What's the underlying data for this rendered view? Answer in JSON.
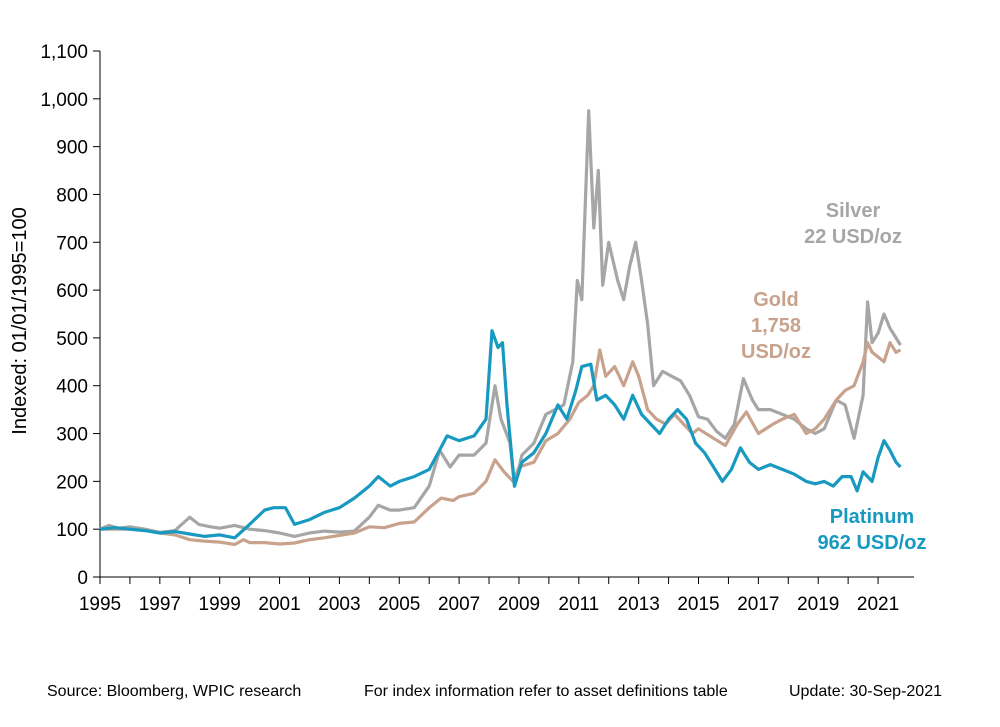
{
  "chart_data": {
    "type": "line",
    "ylabel": "Indexed: 01/01/1995=100",
    "xlabel": "",
    "xlim": [
      1995,
      2021.8
    ],
    "ylim": [
      0,
      1100
    ],
    "yticks": [
      0,
      100,
      200,
      300,
      400,
      500,
      600,
      700,
      800,
      900,
      1000,
      1100
    ],
    "ytick_labels": [
      "0",
      "100",
      "200",
      "300",
      "400",
      "500",
      "600",
      "700",
      "800",
      "900",
      "1,000",
      "1,100"
    ],
    "xticks": [
      1995,
      1997,
      1999,
      2001,
      2003,
      2005,
      2007,
      2009,
      2011,
      2013,
      2015,
      2017,
      2019,
      2021
    ],
    "xtick_labels": [
      "1995",
      "1997",
      "1999",
      "2001",
      "2003",
      "2005",
      "2007",
      "2009",
      "2011",
      "2013",
      "2015",
      "2017",
      "2019",
      "2021"
    ],
    "grid": false,
    "series": [
      {
        "name": "Silver",
        "color": "#a6a6a6",
        "label_lines": [
          "Silver",
          "22 USD/oz"
        ],
        "points": [
          [
            1995,
            100
          ],
          [
            1995.3,
            108
          ],
          [
            1995.6,
            102
          ],
          [
            1996,
            105
          ],
          [
            1996.5,
            100
          ],
          [
            1997,
            93
          ],
          [
            1997.5,
            97
          ],
          [
            1998,
            125
          ],
          [
            1998.3,
            110
          ],
          [
            1998.7,
            105
          ],
          [
            1999,
            102
          ],
          [
            1999.5,
            108
          ],
          [
            2000,
            100
          ],
          [
            2000.5,
            97
          ],
          [
            2001,
            92
          ],
          [
            2001.5,
            85
          ],
          [
            2002,
            92
          ],
          [
            2002.5,
            96
          ],
          [
            2003,
            94
          ],
          [
            2003.5,
            96
          ],
          [
            2004,
            125
          ],
          [
            2004.3,
            150
          ],
          [
            2004.7,
            140
          ],
          [
            2005,
            140
          ],
          [
            2005.5,
            145
          ],
          [
            2006,
            190
          ],
          [
            2006.35,
            265
          ],
          [
            2006.7,
            230
          ],
          [
            2007,
            255
          ],
          [
            2007.5,
            255
          ],
          [
            2007.9,
            280
          ],
          [
            2008.2,
            400
          ],
          [
            2008.4,
            330
          ],
          [
            2008.7,
            280
          ],
          [
            2008.85,
            190
          ],
          [
            2009.1,
            255
          ],
          [
            2009.5,
            280
          ],
          [
            2009.9,
            340
          ],
          [
            2010.2,
            350
          ],
          [
            2010.5,
            360
          ],
          [
            2010.8,
            450
          ],
          [
            2010.95,
            620
          ],
          [
            2011.1,
            580
          ],
          [
            2011.33,
            975
          ],
          [
            2011.5,
            730
          ],
          [
            2011.65,
            850
          ],
          [
            2011.8,
            610
          ],
          [
            2012,
            700
          ],
          [
            2012.3,
            620
          ],
          [
            2012.5,
            580
          ],
          [
            2012.7,
            650
          ],
          [
            2012.9,
            700
          ],
          [
            2013.1,
            620
          ],
          [
            2013.3,
            530
          ],
          [
            2013.5,
            400
          ],
          [
            2013.8,
            430
          ],
          [
            2014.1,
            420
          ],
          [
            2014.4,
            410
          ],
          [
            2014.7,
            380
          ],
          [
            2015,
            335
          ],
          [
            2015.3,
            330
          ],
          [
            2015.6,
            305
          ],
          [
            2015.9,
            290
          ],
          [
            2016.2,
            320
          ],
          [
            2016.5,
            415
          ],
          [
            2016.8,
            370
          ],
          [
            2017,
            350
          ],
          [
            2017.4,
            350
          ],
          [
            2017.8,
            340
          ],
          [
            2018.2,
            330
          ],
          [
            2018.6,
            310
          ],
          [
            2018.9,
            300
          ],
          [
            2019.2,
            310
          ],
          [
            2019.6,
            370
          ],
          [
            2019.9,
            360
          ],
          [
            2020.2,
            290
          ],
          [
            2020.5,
            380
          ],
          [
            2020.65,
            575
          ],
          [
            2020.8,
            490
          ],
          [
            2021,
            510
          ],
          [
            2021.2,
            550
          ],
          [
            2021.4,
            520
          ],
          [
            2021.6,
            500
          ],
          [
            2021.75,
            485
          ]
        ]
      },
      {
        "name": "Gold",
        "color": "#c8a28c",
        "label_lines": [
          "Gold",
          "1,758",
          "USD/oz"
        ],
        "points": [
          [
            1995,
            100
          ],
          [
            1995.5,
            100
          ],
          [
            1996,
            100
          ],
          [
            1996.5,
            98
          ],
          [
            1997,
            92
          ],
          [
            1997.5,
            88
          ],
          [
            1998,
            78
          ],
          [
            1998.5,
            75
          ],
          [
            1999,
            73
          ],
          [
            1999.5,
            68
          ],
          [
            1999.8,
            78
          ],
          [
            2000,
            72
          ],
          [
            2000.5,
            72
          ],
          [
            2001,
            69
          ],
          [
            2001.5,
            71
          ],
          [
            2002,
            78
          ],
          [
            2002.5,
            82
          ],
          [
            2003,
            87
          ],
          [
            2003.5,
            92
          ],
          [
            2004,
            105
          ],
          [
            2004.5,
            103
          ],
          [
            2005,
            112
          ],
          [
            2005.5,
            115
          ],
          [
            2006,
            145
          ],
          [
            2006.4,
            165
          ],
          [
            2006.8,
            160
          ],
          [
            2007,
            168
          ],
          [
            2007.5,
            175
          ],
          [
            2007.9,
            200
          ],
          [
            2008.2,
            245
          ],
          [
            2008.5,
            220
          ],
          [
            2008.8,
            200
          ],
          [
            2009,
            230
          ],
          [
            2009.5,
            240
          ],
          [
            2009.9,
            285
          ],
          [
            2010.3,
            300
          ],
          [
            2010.7,
            330
          ],
          [
            2011,
            365
          ],
          [
            2011.3,
            380
          ],
          [
            2011.5,
            400
          ],
          [
            2011.7,
            475
          ],
          [
            2011.9,
            420
          ],
          [
            2012.2,
            440
          ],
          [
            2012.5,
            400
          ],
          [
            2012.8,
            450
          ],
          [
            2013,
            420
          ],
          [
            2013.3,
            350
          ],
          [
            2013.6,
            330
          ],
          [
            2013.9,
            320
          ],
          [
            2014.2,
            340
          ],
          [
            2014.5,
            320
          ],
          [
            2014.8,
            300
          ],
          [
            2015,
            310
          ],
          [
            2015.5,
            290
          ],
          [
            2015.9,
            275
          ],
          [
            2016.3,
            320
          ],
          [
            2016.6,
            345
          ],
          [
            2017,
            300
          ],
          [
            2017.5,
            320
          ],
          [
            2017.8,
            330
          ],
          [
            2018.2,
            340
          ],
          [
            2018.6,
            300
          ],
          [
            2018.9,
            310
          ],
          [
            2019.2,
            330
          ],
          [
            2019.6,
            370
          ],
          [
            2019.9,
            390
          ],
          [
            2020.2,
            400
          ],
          [
            2020.5,
            450
          ],
          [
            2020.65,
            490
          ],
          [
            2020.8,
            470
          ],
          [
            2021,
            460
          ],
          [
            2021.2,
            450
          ],
          [
            2021.4,
            490
          ],
          [
            2021.6,
            470
          ],
          [
            2021.75,
            475
          ]
        ]
      },
      {
        "name": "Platinum",
        "color": "#1799c0",
        "label_lines": [
          "Platinum",
          "962 USD/oz"
        ],
        "points": [
          [
            1995,
            100
          ],
          [
            1995.5,
            103
          ],
          [
            1996,
            100
          ],
          [
            1996.5,
            97
          ],
          [
            1997,
            92
          ],
          [
            1997.5,
            95
          ],
          [
            1998,
            90
          ],
          [
            1998.5,
            85
          ],
          [
            1999,
            88
          ],
          [
            1999.5,
            82
          ],
          [
            2000,
            110
          ],
          [
            2000.5,
            140
          ],
          [
            2000.8,
            145
          ],
          [
            2001.2,
            145
          ],
          [
            2001.5,
            110
          ],
          [
            2002,
            120
          ],
          [
            2002.5,
            135
          ],
          [
            2003,
            145
          ],
          [
            2003.5,
            165
          ],
          [
            2004,
            190
          ],
          [
            2004.3,
            210
          ],
          [
            2004.7,
            190
          ],
          [
            2005,
            200
          ],
          [
            2005.5,
            210
          ],
          [
            2006,
            225
          ],
          [
            2006.3,
            260
          ],
          [
            2006.6,
            295
          ],
          [
            2007,
            285
          ],
          [
            2007.5,
            295
          ],
          [
            2007.9,
            330
          ],
          [
            2008.1,
            515
          ],
          [
            2008.3,
            480
          ],
          [
            2008.45,
            490
          ],
          [
            2008.6,
            360
          ],
          [
            2008.85,
            190
          ],
          [
            2009.1,
            240
          ],
          [
            2009.5,
            260
          ],
          [
            2009.9,
            300
          ],
          [
            2010.3,
            360
          ],
          [
            2010.6,
            330
          ],
          [
            2010.9,
            390
          ],
          [
            2011.1,
            440
          ],
          [
            2011.4,
            445
          ],
          [
            2011.6,
            370
          ],
          [
            2011.9,
            380
          ],
          [
            2012.2,
            360
          ],
          [
            2012.5,
            330
          ],
          [
            2012.8,
            380
          ],
          [
            2013.1,
            340
          ],
          [
            2013.4,
            320
          ],
          [
            2013.7,
            300
          ],
          [
            2014,
            330
          ],
          [
            2014.3,
            350
          ],
          [
            2014.6,
            330
          ],
          [
            2014.9,
            280
          ],
          [
            2015.2,
            260
          ],
          [
            2015.5,
            230
          ],
          [
            2015.8,
            200
          ],
          [
            2016.1,
            225
          ],
          [
            2016.4,
            270
          ],
          [
            2016.7,
            240
          ],
          [
            2017,
            225
          ],
          [
            2017.4,
            235
          ],
          [
            2017.8,
            225
          ],
          [
            2018.2,
            215
          ],
          [
            2018.6,
            200
          ],
          [
            2018.9,
            195
          ],
          [
            2019.2,
            200
          ],
          [
            2019.5,
            190
          ],
          [
            2019.8,
            210
          ],
          [
            2020.1,
            210
          ],
          [
            2020.3,
            180
          ],
          [
            2020.5,
            220
          ],
          [
            2020.8,
            200
          ],
          [
            2021,
            250
          ],
          [
            2021.2,
            285
          ],
          [
            2021.4,
            265
          ],
          [
            2021.6,
            240
          ],
          [
            2021.75,
            230
          ]
        ]
      }
    ]
  },
  "footer": {
    "source": "Source: Bloomberg, WPIC research",
    "note": "For index information refer to asset definitions table",
    "update": "Update: 30-Sep-2021"
  }
}
